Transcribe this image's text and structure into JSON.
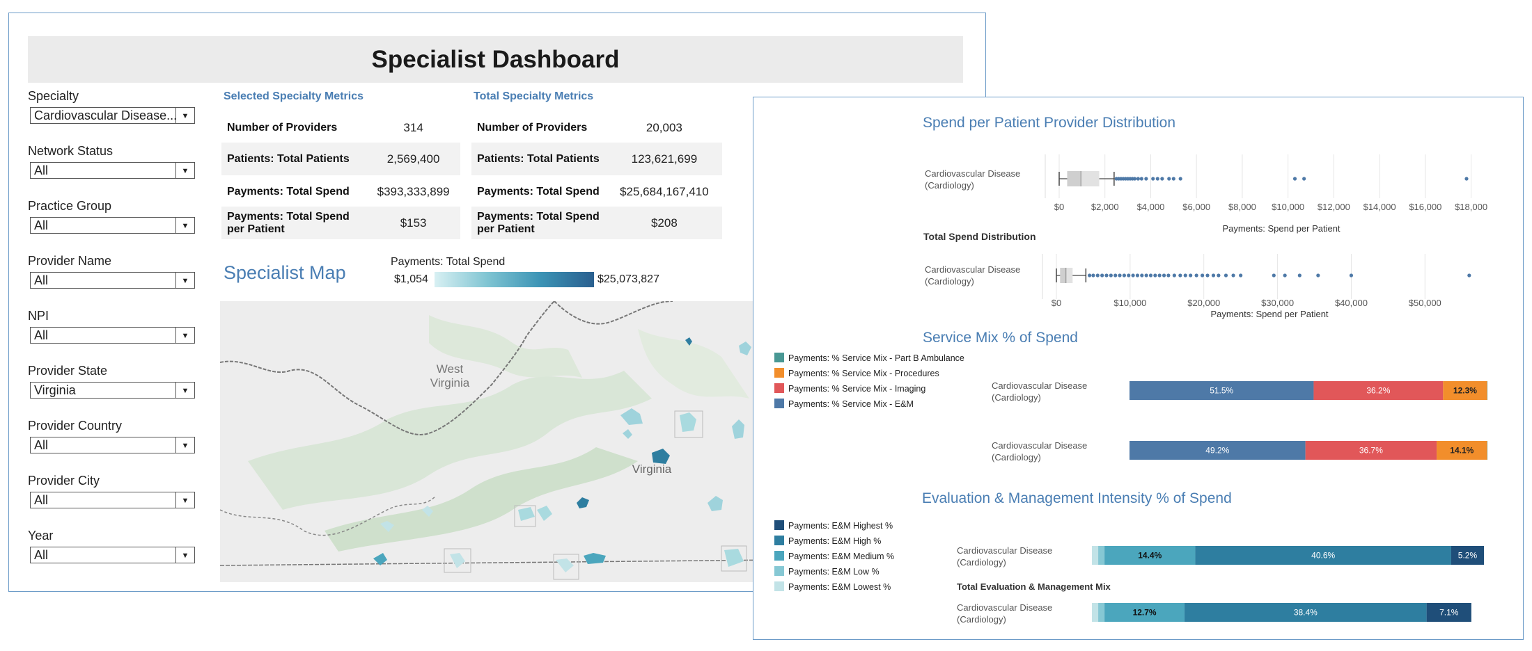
{
  "dashboard": {
    "title": "Specialist Dashboard"
  },
  "filters": [
    {
      "label": "Specialty",
      "value": "Cardiovascular Disease..."
    },
    {
      "label": "Network Status",
      "value": "All"
    },
    {
      "label": "Practice Group",
      "value": "All"
    },
    {
      "label": "Provider Name",
      "value": "All"
    },
    {
      "label": "NPI",
      "value": "All"
    },
    {
      "label": "Provider State",
      "value": "Virginia"
    },
    {
      "label": "Provider Country",
      "value": "All"
    },
    {
      "label": "Provider City",
      "value": "All"
    },
    {
      "label": "Year",
      "value": "All"
    }
  ],
  "selected_metrics": {
    "title": "Selected Specialty Metrics",
    "rows": [
      {
        "label": "Number of Providers",
        "value": "314"
      },
      {
        "label": "Patients: Total Patients",
        "value": "2,569,400"
      },
      {
        "label": "Payments: Total Spend",
        "value": "$393,333,899"
      },
      {
        "label": "Payments: Total Spend per Patient",
        "value": "$153"
      }
    ]
  },
  "total_metrics": {
    "title": "Total Specialty Metrics",
    "rows": [
      {
        "label": "Number of Providers",
        "value": "20,003"
      },
      {
        "label": "Patients: Total Patients",
        "value": "123,621,699"
      },
      {
        "label": "Payments: Total Spend",
        "value": "$25,684,167,410"
      },
      {
        "label": "Payments: Total Spend per Patient",
        "value": "$208"
      }
    ]
  },
  "map": {
    "title": "Specialist Map",
    "legend_title": "Payments: Total Spend",
    "legend_min": "$1,054",
    "legend_max": "$25,073,827",
    "labels": {
      "west_virginia": "West\nVirginia",
      "virginia": "Virginia"
    }
  },
  "colors": {
    "accent": "#4a7eb3",
    "em": "#4e79a7",
    "imaging": "#e15759",
    "procedures": "#f28e2b",
    "ambulance": "#499894"
  },
  "chart_data": [
    {
      "type": "scatter",
      "title": "Spend per Patient Provider Distribution",
      "category": "Cardiovascular Disease\n(Cardiology)",
      "xlabel": "Payments: Spend per Patient",
      "xlim": [
        0,
        18500
      ],
      "ticks": [
        0,
        2000,
        4000,
        6000,
        8000,
        10000,
        12000,
        14000,
        16000,
        18000
      ],
      "tick_labels": [
        "$0",
        "$2,000",
        "$4,000",
        "$6,000",
        "$8,000",
        "$10,000",
        "$12,000",
        "$14,000",
        "$16,000",
        "$18,000"
      ],
      "box": {
        "whisker_low": 0,
        "q1": 350,
        "median": 950,
        "q3": 1750,
        "whisker_high": 2400
      },
      "outliers": [
        2500,
        2600,
        2700,
        2800,
        2900,
        3000,
        3100,
        3200,
        3300,
        3450,
        3600,
        3800,
        4100,
        4300,
        4500,
        4800,
        5000,
        5300,
        10300,
        10700,
        17800
      ]
    },
    {
      "type": "scatter",
      "title": "Total Spend Distribution",
      "category": "Cardiovascular Disease\n(Cardiology)",
      "xlabel": "Payments: Spend per Patient",
      "xlim": [
        0,
        58000
      ],
      "ticks": [
        0,
        10000,
        20000,
        30000,
        40000,
        50000
      ],
      "tick_labels": [
        "$0",
        "$10,000",
        "$20,000",
        "$30,000",
        "$40,000",
        "$50,000"
      ],
      "box": {
        "whisker_low": 0,
        "q1": 500,
        "median": 1300,
        "q3": 2200,
        "whisker_high": 4000
      },
      "outliers": [
        4500,
        5000,
        5600,
        6200,
        6800,
        7400,
        8000,
        8600,
        9200,
        9800,
        10400,
        11000,
        11600,
        12200,
        12800,
        13400,
        14000,
        14600,
        15200,
        16000,
        16800,
        17500,
        18200,
        19000,
        19800,
        20500,
        21300,
        22000,
        23000,
        24000,
        25000,
        29500,
        31000,
        33000,
        35500,
        40000,
        56000
      ]
    },
    {
      "type": "bar",
      "stacked": true,
      "title": "Service Mix % of Spend",
      "categories": [
        "Cardiovascular Disease\n(Cardiology)",
        "Cardiovascular Disease\n(Cardiology)"
      ],
      "series": [
        {
          "name": "Payments: % Service Mix - E&M",
          "values": [
            51.5,
            49.2
          ],
          "labels": [
            "51.5%",
            "49.2%"
          ]
        },
        {
          "name": "Payments: % Service Mix - Imaging",
          "values": [
            36.2,
            36.7
          ],
          "labels": [
            "36.2%",
            "36.7%"
          ]
        },
        {
          "name": "Payments: % Service Mix - Procedures",
          "values": [
            12.3,
            14.1
          ],
          "labels": [
            "12.3%",
            "14.1%"
          ]
        },
        {
          "name": "Payments: % Service Mix - Part B Ambulance",
          "values": [
            0.1,
            0.1
          ],
          "labels": [
            "",
            ""
          ]
        }
      ],
      "legend_order": [
        "Payments: % Service Mix - Part B Ambulance",
        "Payments: % Service Mix - Procedures",
        "Payments: % Service Mix - Imaging",
        "Payments: % Service Mix - E&M"
      ],
      "legend_colors": [
        "#499894",
        "#f28e2b",
        "#e15759",
        "#4e79a7"
      ]
    },
    {
      "type": "bar",
      "stacked": true,
      "title": "Evaluation & Management Intensity % of Spend",
      "subtitle": "Total Evaluation & Management Mix",
      "categories": [
        "Cardiovascular Disease\n(Cardiology)",
        "Cardiovascular Disease\n(Cardiology)"
      ],
      "series": [
        {
          "name": "Payments: E&M Lowest  %",
          "values": [
            1.0,
            1.0
          ],
          "labels": [
            "",
            ""
          ]
        },
        {
          "name": "Payments: E&M Low %",
          "values": [
            1.0,
            1.0
          ],
          "labels": [
            "",
            ""
          ]
        },
        {
          "name": "Payments: E&M Medium %",
          "values": [
            14.4,
            12.7
          ],
          "labels": [
            "14.4%",
            "12.7%"
          ]
        },
        {
          "name": "Payments: E&M High %",
          "values": [
            40.6,
            38.4
          ],
          "labels": [
            "40.6%",
            "38.4%"
          ]
        },
        {
          "name": "Payments: E&M Highest %",
          "values": [
            5.2,
            7.1
          ],
          "labels": [
            "5.2%",
            "7.1%"
          ]
        }
      ],
      "legend_order": [
        "Payments: E&M Highest %",
        "Payments: E&M High %",
        "Payments: E&M Medium %",
        "Payments: E&M Low %",
        "Payments: E&M Lowest  %"
      ],
      "legend_colors": [
        "#1f4e79",
        "#2e7ea0",
        "#4ba6bd",
        "#86c8d4",
        "#c2e3e7"
      ]
    }
  ]
}
